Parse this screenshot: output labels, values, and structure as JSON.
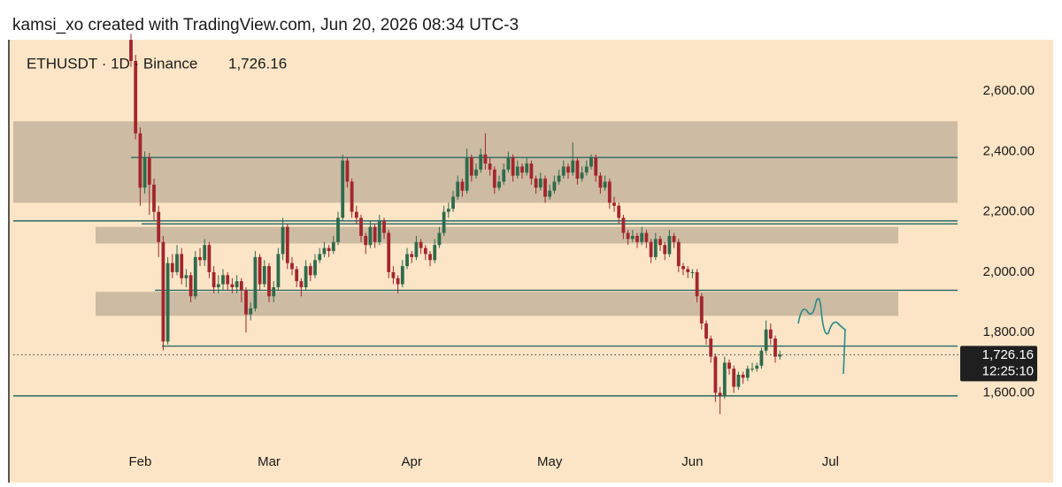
{
  "chart_data": {
    "type": "candlestick",
    "attribution": "kamsi_xo created with TradingView.com, Jun 20, 2026 08:34 UTC-3",
    "symbol": "ETHUSDT · 1D · Binance",
    "last_price": {
      "value": 1726.16,
      "label": "1,726.16"
    },
    "countdown": "12:25:10",
    "up_color": "#2f6b4c",
    "down_color": "#a3262c",
    "level_color": "#2a6b66",
    "zone_color": "#cdbba3",
    "ylim": [
      1408,
      2779
    ],
    "yticks": [
      {
        "value": 1600,
        "label": "1,600.00"
      },
      {
        "value": 1800,
        "label": "1,800.00"
      },
      {
        "value": 2000,
        "label": "2,000.00"
      },
      {
        "value": 2200,
        "label": "2,200.00"
      },
      {
        "value": 2400,
        "label": "2,400.00"
      },
      {
        "value": 2600,
        "label": "2,600.00"
      }
    ],
    "levels": [
      2380,
      2170,
      2160,
      1940,
      1755,
      1590
    ],
    "zones": [
      [
        2230,
        2500
      ],
      [
        2095,
        2150
      ],
      [
        1855,
        1935
      ]
    ],
    "categories": [
      null,
      null,
      "Feb",
      null,
      null,
      null,
      null,
      null,
      null,
      null,
      null,
      null,
      null,
      null,
      null,
      null,
      null,
      null,
      null,
      null,
      null,
      null,
      null,
      null,
      null,
      null,
      null,
      null,
      null,
      null,
      "Mar",
      null,
      null,
      null,
      null,
      null,
      null,
      null,
      null,
      null,
      null,
      null,
      null,
      null,
      null,
      null,
      null,
      null,
      null,
      null,
      null,
      null,
      null,
      null,
      null,
      null,
      null,
      null,
      null,
      null,
      null,
      "Apr",
      null,
      null,
      null,
      null,
      null,
      null,
      null,
      null,
      null,
      null,
      null,
      null,
      null,
      null,
      null,
      null,
      null,
      null,
      null,
      null,
      null,
      null,
      null,
      null,
      null,
      null,
      null,
      null,
      null,
      "May",
      null,
      null,
      null,
      null,
      null,
      null,
      null,
      null,
      null,
      null,
      null,
      null,
      null,
      null,
      null,
      null,
      null,
      null,
      null,
      null,
      null,
      null,
      null,
      null,
      null,
      null,
      null,
      null,
      null,
      null,
      "Jun",
      null,
      null,
      null,
      null,
      null,
      null,
      null,
      null,
      null,
      null,
      null,
      null,
      null,
      null,
      null,
      null,
      null,
      null,
      null,
      null,
      null,
      null,
      null,
      null,
      null,
      null,
      null,
      null,
      null,
      "Jul",
      null,
      null,
      null,
      null,
      null,
      null,
      null,
      null,
      null,
      null,
      null,
      null,
      null,
      null,
      null,
      null,
      null,
      null,
      null,
      null,
      null,
      null,
      null,
      null,
      null,
      null,
      null,
      null
    ],
    "ohlc": [
      [
        2770,
        2790,
        2680,
        2700
      ],
      [
        2700,
        2720,
        2440,
        2460
      ],
      [
        2460,
        2480,
        2220,
        2280
      ],
      [
        2280,
        2400,
        2260,
        2380
      ],
      [
        2380,
        2395,
        2190,
        2290
      ],
      [
        2290,
        2310,
        2170,
        2200
      ],
      [
        2200,
        2220,
        2050,
        2100
      ],
      [
        2100,
        2120,
        1740,
        1770
      ],
      [
        1770,
        2050,
        1760,
        2030
      ],
      [
        2030,
        2060,
        1980,
        2000
      ],
      [
        2000,
        2090,
        1990,
        2060
      ],
      [
        2060,
        2080,
        1960,
        1980
      ],
      [
        1980,
        2010,
        1950,
        1990
      ],
      [
        1990,
        2000,
        1900,
        1920
      ],
      [
        1920,
        2070,
        1910,
        2050
      ],
      [
        2050,
        2080,
        2020,
        2040
      ],
      [
        2040,
        2110,
        2020,
        2090
      ],
      [
        2090,
        2100,
        1980,
        2000
      ],
      [
        2000,
        2020,
        1930,
        1950
      ],
      [
        1950,
        1990,
        1930,
        1960
      ],
      [
        1960,
        2010,
        1940,
        1990
      ],
      [
        1990,
        2000,
        1940,
        1960
      ],
      [
        1960,
        1980,
        1930,
        1950
      ],
      [
        1950,
        1990,
        1930,
        1970
      ],
      [
        1970,
        1980,
        1900,
        1940
      ],
      [
        1940,
        1950,
        1800,
        1860
      ],
      [
        1860,
        1900,
        1840,
        1880
      ],
      [
        1880,
        2070,
        1870,
        2050
      ],
      [
        2050,
        2060,
        1940,
        1960
      ],
      [
        1960,
        2040,
        1950,
        2020
      ],
      [
        2020,
        2030,
        1900,
        1920
      ],
      [
        1920,
        1970,
        1900,
        1950
      ],
      [
        1950,
        2080,
        1940,
        2060
      ],
      [
        2060,
        2180,
        2040,
        2150
      ],
      [
        2150,
        2160,
        2010,
        2030
      ],
      [
        2030,
        2050,
        1990,
        2010
      ],
      [
        2010,
        2020,
        1950,
        1970
      ],
      [
        1970,
        1980,
        1920,
        1950
      ],
      [
        1950,
        2040,
        1940,
        2020
      ],
      [
        2020,
        2030,
        1970,
        1990
      ],
      [
        1990,
        2060,
        1980,
        2040
      ],
      [
        2040,
        2080,
        2030,
        2060
      ],
      [
        2060,
        2100,
        2050,
        2080
      ],
      [
        2080,
        2090,
        2050,
        2070
      ],
      [
        2070,
        2120,
        2060,
        2100
      ],
      [
        2100,
        2200,
        2090,
        2180
      ],
      [
        2180,
        2390,
        2170,
        2370
      ],
      [
        2370,
        2380,
        2280,
        2300
      ],
      [
        2300,
        2310,
        2180,
        2200
      ],
      [
        2200,
        2220,
        2160,
        2180
      ],
      [
        2180,
        2190,
        2100,
        2120
      ],
      [
        2120,
        2130,
        2060,
        2090
      ],
      [
        2090,
        2170,
        2080,
        2150
      ],
      [
        2150,
        2160,
        2080,
        2100
      ],
      [
        2100,
        2190,
        2090,
        2170
      ],
      [
        2170,
        2180,
        2110,
        2130
      ],
      [
        2130,
        2140,
        1980,
        2000
      ],
      [
        2000,
        2020,
        1960,
        1980
      ],
      [
        1980,
        1990,
        1930,
        1960
      ],
      [
        1960,
        2040,
        1950,
        2020
      ],
      [
        2020,
        2080,
        2010,
        2060
      ],
      [
        2060,
        2070,
        2030,
        2050
      ],
      [
        2050,
        2120,
        2040,
        2100
      ],
      [
        2100,
        2110,
        2060,
        2080
      ],
      [
        2080,
        2090,
        2040,
        2060
      ],
      [
        2060,
        2070,
        2020,
        2040
      ],
      [
        2040,
        2110,
        2030,
        2090
      ],
      [
        2090,
        2150,
        2080,
        2130
      ],
      [
        2130,
        2220,
        2120,
        2200
      ],
      [
        2200,
        2230,
        2180,
        2210
      ],
      [
        2210,
        2270,
        2200,
        2250
      ],
      [
        2250,
        2320,
        2240,
        2300
      ],
      [
        2300,
        2310,
        2250,
        2270
      ],
      [
        2270,
        2410,
        2260,
        2380
      ],
      [
        2380,
        2390,
        2300,
        2320
      ],
      [
        2320,
        2360,
        2310,
        2340
      ],
      [
        2340,
        2410,
        2330,
        2390
      ],
      [
        2390,
        2460,
        2340,
        2360
      ],
      [
        2360,
        2380,
        2320,
        2340
      ],
      [
        2340,
        2350,
        2260,
        2280
      ],
      [
        2280,
        2320,
        2270,
        2300
      ],
      [
        2300,
        2360,
        2290,
        2340
      ],
      [
        2340,
        2400,
        2330,
        2380
      ],
      [
        2380,
        2390,
        2300,
        2320
      ],
      [
        2320,
        2370,
        2310,
        2350
      ],
      [
        2350,
        2360,
        2310,
        2330
      ],
      [
        2330,
        2380,
        2320,
        2360
      ],
      [
        2360,
        2370,
        2290,
        2310
      ],
      [
        2310,
        2320,
        2260,
        2280
      ],
      [
        2280,
        2330,
        2270,
        2310
      ],
      [
        2310,
        2320,
        2230,
        2250
      ],
      [
        2250,
        2290,
        2240,
        2270
      ],
      [
        2270,
        2320,
        2260,
        2300
      ],
      [
        2300,
        2340,
        2290,
        2320
      ],
      [
        2320,
        2370,
        2310,
        2350
      ],
      [
        2350,
        2360,
        2310,
        2330
      ],
      [
        2330,
        2430,
        2320,
        2370
      ],
      [
        2370,
        2380,
        2290,
        2310
      ],
      [
        2310,
        2350,
        2300,
        2330
      ],
      [
        2330,
        2370,
        2320,
        2350
      ],
      [
        2350,
        2390,
        2340,
        2380
      ],
      [
        2380,
        2390,
        2300,
        2320
      ],
      [
        2320,
        2330,
        2260,
        2280
      ],
      [
        2280,
        2320,
        2270,
        2300
      ],
      [
        2300,
        2310,
        2210,
        2230
      ],
      [
        2230,
        2250,
        2200,
        2220
      ],
      [
        2220,
        2230,
        2160,
        2180
      ],
      [
        2180,
        2190,
        2110,
        2130
      ],
      [
        2130,
        2140,
        2090,
        2110
      ],
      [
        2110,
        2140,
        2100,
        2120
      ],
      [
        2120,
        2130,
        2080,
        2100
      ],
      [
        2100,
        2150,
        2090,
        2130
      ],
      [
        2130,
        2140,
        2080,
        2100
      ],
      [
        2100,
        2110,
        2030,
        2050
      ],
      [
        2050,
        2130,
        2040,
        2110
      ],
      [
        2110,
        2120,
        2070,
        2090
      ],
      [
        2090,
        2100,
        2040,
        2060
      ],
      [
        2060,
        2140,
        2050,
        2120
      ],
      [
        2120,
        2130,
        2080,
        2100
      ],
      [
        2100,
        2110,
        2000,
        2020
      ],
      [
        2020,
        2030,
        1990,
        2010
      ],
      [
        2010,
        2020,
        1980,
        2000
      ],
      [
        2000,
        2010,
        1980,
        2000
      ],
      [
        2000,
        2010,
        1900,
        1920
      ],
      [
        1920,
        1930,
        1810,
        1830
      ],
      [
        1830,
        1840,
        1760,
        1780
      ],
      [
        1780,
        1790,
        1700,
        1720
      ],
      [
        1720,
        1730,
        1570,
        1600
      ],
      [
        1600,
        1620,
        1530,
        1590
      ],
      [
        1590,
        1720,
        1580,
        1700
      ],
      [
        1700,
        1710,
        1660,
        1680
      ],
      [
        1680,
        1690,
        1600,
        1620
      ],
      [
        1620,
        1670,
        1610,
        1660
      ],
      [
        1660,
        1670,
        1630,
        1650
      ],
      [
        1650,
        1690,
        1640,
        1680
      ],
      [
        1680,
        1700,
        1670,
        1680
      ],
      [
        1680,
        1700,
        1670,
        1690
      ],
      [
        1690,
        1750,
        1680,
        1740
      ],
      [
        1740,
        1840,
        1730,
        1810
      ],
      [
        1810,
        1830,
        1760,
        1780
      ],
      [
        1780,
        1790,
        1700,
        1720
      ],
      [
        1720,
        1740,
        1710,
        1726.16
      ],
      null,
      null,
      null,
      null,
      null,
      null,
      null,
      null,
      null,
      null,
      null,
      null,
      null,
      null,
      null,
      null,
      null,
      null,
      null,
      null,
      null,
      null,
      null,
      null,
      null,
      null,
      null,
      null,
      null,
      null,
      null,
      null,
      null,
      null,
      null,
      null,
      null,
      null,
      null
    ]
  }
}
